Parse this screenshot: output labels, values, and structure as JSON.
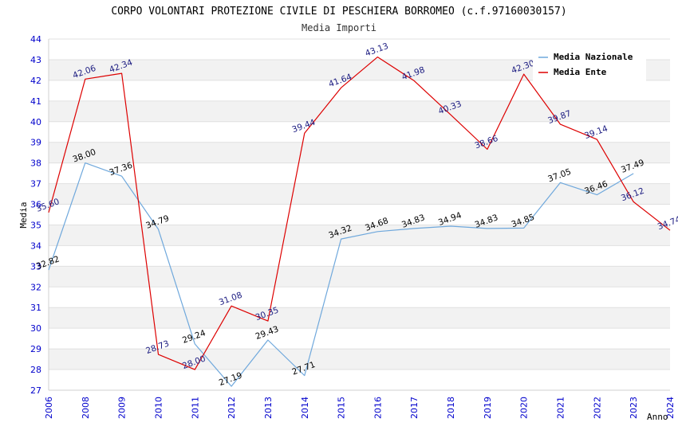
{
  "chart_data": {
    "type": "line",
    "title": "CORPO VOLONTARI PROTEZIONE CIVILE DI PESCHIERA BORROMEO (c.f.97160030157)",
    "subtitle": "Media Importi",
    "xlabel": "Anno",
    "ylabel": "Media",
    "x": [
      "2006",
      "2008",
      "2009",
      "2010",
      "2011",
      "2012",
      "2013",
      "2014",
      "2015",
      "2016",
      "2017",
      "2018",
      "2019",
      "2020",
      "2021",
      "2022",
      "2023",
      "2024"
    ],
    "yticks": [
      "27",
      "28",
      "29",
      "30",
      "31",
      "32",
      "33",
      "34",
      "35",
      "36",
      "37",
      "38",
      "39",
      "40",
      "41",
      "42",
      "43",
      "44"
    ],
    "ylim": [
      27,
      44
    ],
    "grid": "horizontal-bands",
    "legend_position": "top-right",
    "series": [
      {
        "name": "Media Nazionale",
        "color": "#6fa8dc",
        "values": [
          32.82,
          38.0,
          37.36,
          34.79,
          29.24,
          27.19,
          29.43,
          27.71,
          34.32,
          34.68,
          34.83,
          34.94,
          34.83,
          34.85,
          37.05,
          36.46,
          37.49,
          null
        ],
        "labels": [
          "32.82",
          "38.00",
          "37.36",
          "34.79",
          "29.24",
          "27.19",
          "29.43",
          "27.71",
          "34.32",
          "34.68",
          "34.83",
          "34.94",
          "34.83",
          "34.85",
          "37.05",
          "36.46",
          "37.49",
          ""
        ]
      },
      {
        "name": "Media Ente",
        "color": "#dd0000",
        "values": [
          35.6,
          42.06,
          42.34,
          28.73,
          28.0,
          31.08,
          30.35,
          39.44,
          41.64,
          43.13,
          41.98,
          40.33,
          38.66,
          42.3,
          39.87,
          39.14,
          36.12,
          34.74
        ],
        "labels": [
          "35.60",
          "42.06",
          "42.34",
          "28.73",
          "28.00",
          "31.08",
          "30.35",
          "39.44",
          "41.64",
          "43.13",
          "41.98",
          "40.33",
          "38.66",
          "42.30",
          "39.87",
          "39.14",
          "36.12",
          "34.74"
        ]
      }
    ]
  }
}
